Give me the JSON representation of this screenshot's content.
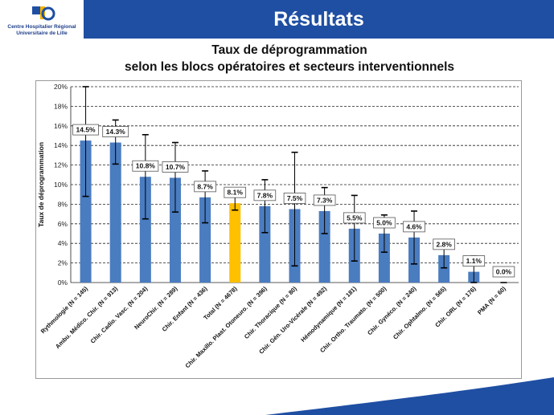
{
  "header": {
    "title": "Résultats",
    "logo_line1": "Centre Hospitalier Régional",
    "logo_line2": "Universitaire de Lille"
  },
  "colors": {
    "header_bg": "#1f4fa3",
    "bar": "#4a7cc0",
    "bar_highlight": "#ffc000",
    "footer": "#1f4fa3"
  },
  "chart_data": {
    "type": "bar",
    "title_line1": "Taux de déprogrammation",
    "title_line2": "selon les blocs opératoires et secteurs interventionnels",
    "ylabel": "Taux de déprogrammation",
    "xlabel": "",
    "ylim": [
      0,
      20
    ],
    "yticks": [
      "0%",
      "2%",
      "4%",
      "6%",
      "8%",
      "10%",
      "12%",
      "14%",
      "16%",
      "18%",
      "20%"
    ],
    "grid": true,
    "highlight_index": 5,
    "categories": [
      "Rythmologie (N = 145)",
      "Ambu. Médico. Chir. (N = 913)",
      "Chir. Cadio. Vasc. (N = 204)",
      "NeuroChir. (N = 289)",
      "Chir. Enfant (N = 436)",
      "Total (N = 4678)",
      "Chir. Maxillo. Plast. Otoneuro. (N = 396)",
      "Chir. Thoracique (N = 80)",
      "Chir. Gén. Uro-Vicérale (N = 492)",
      "Hémodynamique (N = 181)",
      "Chir. Ortho. Traumato. (N = 500)",
      "Chir. Gynéco. (N = 240)",
      "Chir. Ophtalmo. (N = 565)",
      "Chir. ORL (N = 176)",
      "PMA (N = 60)"
    ],
    "values": [
      14.5,
      14.3,
      10.8,
      10.7,
      8.7,
      8.1,
      7.8,
      7.5,
      7.3,
      5.5,
      5.0,
      4.6,
      2.8,
      1.1,
      0.0
    ],
    "labels": [
      "14.5%",
      "14.3%",
      "10.8%",
      "10.7%",
      "8.7%",
      "8.1%",
      "7.8%",
      "7.5%",
      "7.3%",
      "5.5%",
      "5.0%",
      "4.6%",
      "2.8%",
      "1.1%",
      "0.0%"
    ],
    "ci_low": [
      8.8,
      12.1,
      6.5,
      7.2,
      6.1,
      7.4,
      5.1,
      1.7,
      5.0,
      2.2,
      3.1,
      1.9,
      1.5,
      0.0,
      0.0
    ],
    "ci_high": [
      20.0,
      16.6,
      15.1,
      14.3,
      11.4,
      8.9,
      10.5,
      13.3,
      9.7,
      8.9,
      6.9,
      7.3,
      4.0,
      2.7,
      0.0
    ]
  }
}
